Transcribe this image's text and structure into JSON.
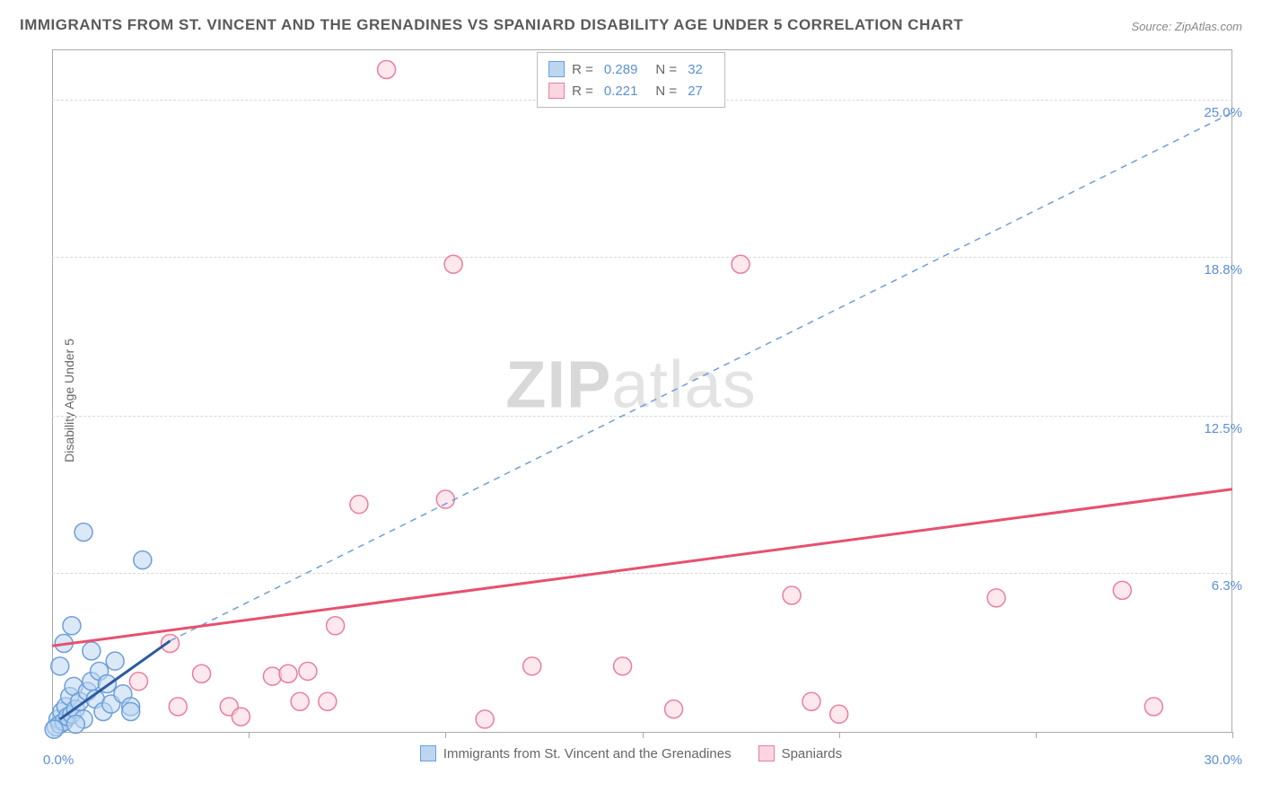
{
  "title": "IMMIGRANTS FROM ST. VINCENT AND THE GRENADINES VS SPANIARD DISABILITY AGE UNDER 5 CORRELATION CHART",
  "source": "Source: ZipAtlas.com",
  "ylabel": "Disability Age Under 5",
  "watermark_bold": "ZIP",
  "watermark_rest": "atlas",
  "chart": {
    "type": "scatter",
    "background_color": "#ffffff",
    "grid_color": "#d8d8d8",
    "axis_color": "#aaaaaa",
    "xlim": [
      0,
      30
    ],
    "ylim": [
      0,
      27
    ],
    "x_ticks": [
      0,
      5,
      10,
      15,
      20,
      25,
      30
    ],
    "x_min_label": "0.0%",
    "x_max_label": "30.0%",
    "y_gridlines": [
      6.3,
      12.5,
      18.8,
      25.0
    ],
    "y_tick_labels": [
      "6.3%",
      "12.5%",
      "18.8%",
      "25.0%"
    ],
    "tick_label_color": "#5b8fd6",
    "series": [
      {
        "name": "Immigrants from St. Vincent and the Grenadines",
        "color_fill": "#bcd6f2",
        "color_stroke": "#6d9fd8",
        "legend_swatch_fill": "#bcd6f2",
        "legend_swatch_stroke": "#6d9fd8",
        "marker_radius": 10,
        "R": "0.289",
        "N": "32",
        "points": [
          [
            0.1,
            0.2
          ],
          [
            0.15,
            0.5
          ],
          [
            0.2,
            0.3
          ],
          [
            0.25,
            0.8
          ],
          [
            0.3,
            0.4
          ],
          [
            0.35,
            1.0
          ],
          [
            0.4,
            0.6
          ],
          [
            0.45,
            1.4
          ],
          [
            0.5,
            0.7
          ],
          [
            0.55,
            1.8
          ],
          [
            0.6,
            0.9
          ],
          [
            0.7,
            1.2
          ],
          [
            0.8,
            0.5
          ],
          [
            0.9,
            1.6
          ],
          [
            1.0,
            2.0
          ],
          [
            1.1,
            1.3
          ],
          [
            1.2,
            2.4
          ],
          [
            1.3,
            0.8
          ],
          [
            1.4,
            1.9
          ],
          [
            1.5,
            1.1
          ],
          [
            1.6,
            2.8
          ],
          [
            1.8,
            1.5
          ],
          [
            2.0,
            1.0
          ],
          [
            0.3,
            3.5
          ],
          [
            0.5,
            4.2
          ],
          [
            1.0,
            3.2
          ],
          [
            0.2,
            2.6
          ],
          [
            2.3,
            6.8
          ],
          [
            0.8,
            7.9
          ],
          [
            2.0,
            0.8
          ],
          [
            0.05,
            0.1
          ],
          [
            0.6,
            0.3
          ]
        ],
        "trend_line": {
          "x1": 0.2,
          "y1": 0.5,
          "x2": 3.0,
          "y2": 3.6,
          "dash": false,
          "width": 3,
          "color": "#2d5aa0"
        },
        "extend_line": {
          "x1": 3.0,
          "y1": 3.6,
          "x2": 30.0,
          "y2": 24.5,
          "dash": true,
          "width": 1.5,
          "color": "#6d9fd8"
        }
      },
      {
        "name": "Spaniards",
        "color_fill": "#fbd5df",
        "color_stroke": "#e97e9e",
        "legend_swatch_fill": "#fbd5df",
        "legend_swatch_stroke": "#e97e9e",
        "marker_radius": 10,
        "R": "0.221",
        "N": "27",
        "points": [
          [
            2.2,
            2.0
          ],
          [
            3.0,
            3.5
          ],
          [
            3.2,
            1.0
          ],
          [
            3.8,
            2.3
          ],
          [
            4.5,
            1.0
          ],
          [
            4.8,
            0.6
          ],
          [
            5.6,
            2.2
          ],
          [
            6.0,
            2.3
          ],
          [
            6.3,
            1.2
          ],
          [
            6.5,
            2.4
          ],
          [
            7.0,
            1.2
          ],
          [
            7.2,
            4.2
          ],
          [
            7.8,
            9.0
          ],
          [
            8.5,
            26.2
          ],
          [
            10.0,
            9.2
          ],
          [
            10.2,
            18.5
          ],
          [
            11.0,
            0.5
          ],
          [
            12.2,
            2.6
          ],
          [
            14.5,
            2.6
          ],
          [
            15.8,
            0.9
          ],
          [
            17.5,
            18.5
          ],
          [
            18.8,
            5.4
          ],
          [
            19.3,
            1.2
          ],
          [
            20.0,
            0.7
          ],
          [
            24.0,
            5.3
          ],
          [
            27.2,
            5.6
          ],
          [
            28.0,
            1.0
          ]
        ],
        "trend_line": {
          "x1": 0,
          "y1": 3.4,
          "x2": 30.0,
          "y2": 9.6,
          "dash": false,
          "width": 3,
          "color": "#e6516f"
        }
      }
    ]
  },
  "legend_box": {
    "r_label": "R =",
    "n_label": "N ="
  },
  "bottom_legend": {
    "series1": "Immigrants from St. Vincent and the Grenadines",
    "series2": "Spaniards"
  }
}
